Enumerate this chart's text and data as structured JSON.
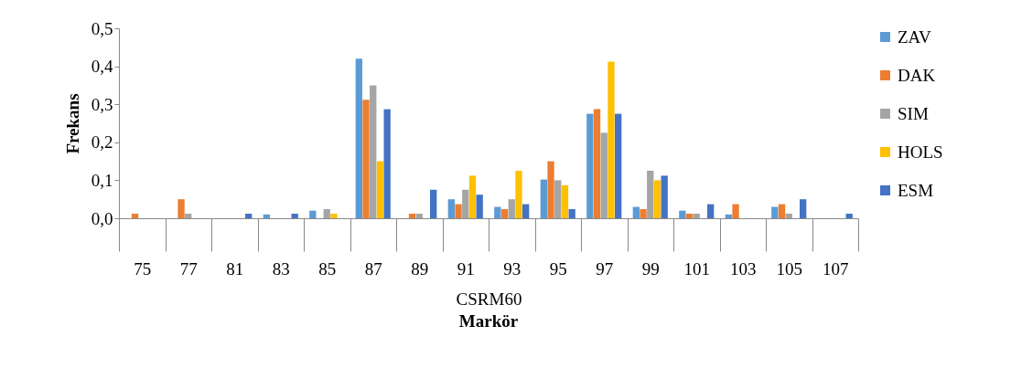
{
  "chart_data": {
    "type": "bar",
    "xlabel": "Markör",
    "ylabel": "Frekans",
    "annotations": [
      "CSRM60"
    ],
    "categories": [
      "75",
      "77",
      "81",
      "83",
      "85",
      "87",
      "89",
      "91",
      "93",
      "95",
      "97",
      "99",
      "101",
      "103",
      "105",
      "107"
    ],
    "series": [
      {
        "name": "ZAV",
        "color": "#5b9bd5",
        "values": [
          0,
          0,
          0,
          0.01,
          0.02,
          0.42,
          0,
          0.05,
          0.03,
          0.102,
          0.275,
          0.03,
          0.02,
          0.01,
          0.03,
          0
        ]
      },
      {
        "name": "DAK",
        "color": "#ed7d31",
        "values": [
          0.012,
          0.05,
          0,
          0,
          0,
          0.312,
          0.012,
          0.037,
          0.024,
          0.15,
          0.287,
          0.024,
          0.012,
          0.037,
          0.037,
          0
        ]
      },
      {
        "name": "SIM",
        "color": "#a5a5a5",
        "values": [
          0,
          0.012,
          0,
          0,
          0.024,
          0.35,
          0.012,
          0.075,
          0.05,
          0.1,
          0.225,
          0.125,
          0.012,
          0,
          0.012,
          0
        ]
      },
      {
        "name": "HOLS",
        "color": "#ffc000",
        "values": [
          0,
          0,
          0,
          0,
          0.012,
          0.15,
          0,
          0.112,
          0.125,
          0.087,
          0.412,
          0.1,
          0,
          0,
          0,
          0
        ]
      },
      {
        "name": "ESM",
        "color": "#4472c4",
        "values": [
          0,
          0,
          0.012,
          0.012,
          0,
          0.287,
          0.075,
          0.062,
          0.037,
          0.024,
          0.275,
          0.112,
          0.037,
          0,
          0.05,
          0.012
        ]
      }
    ],
    "ylim": [
      0,
      0.5
    ],
    "yticks": [
      {
        "value": 0,
        "label": "0,0"
      },
      {
        "value": 0.1,
        "label": "0,1"
      },
      {
        "value": 0.2,
        "label": "0,2"
      },
      {
        "value": 0.3,
        "label": "0,3"
      },
      {
        "value": 0.4,
        "label": "0,4"
      },
      {
        "value": 0.5,
        "label": "0,5"
      }
    ],
    "grid": false,
    "legend": "right"
  }
}
